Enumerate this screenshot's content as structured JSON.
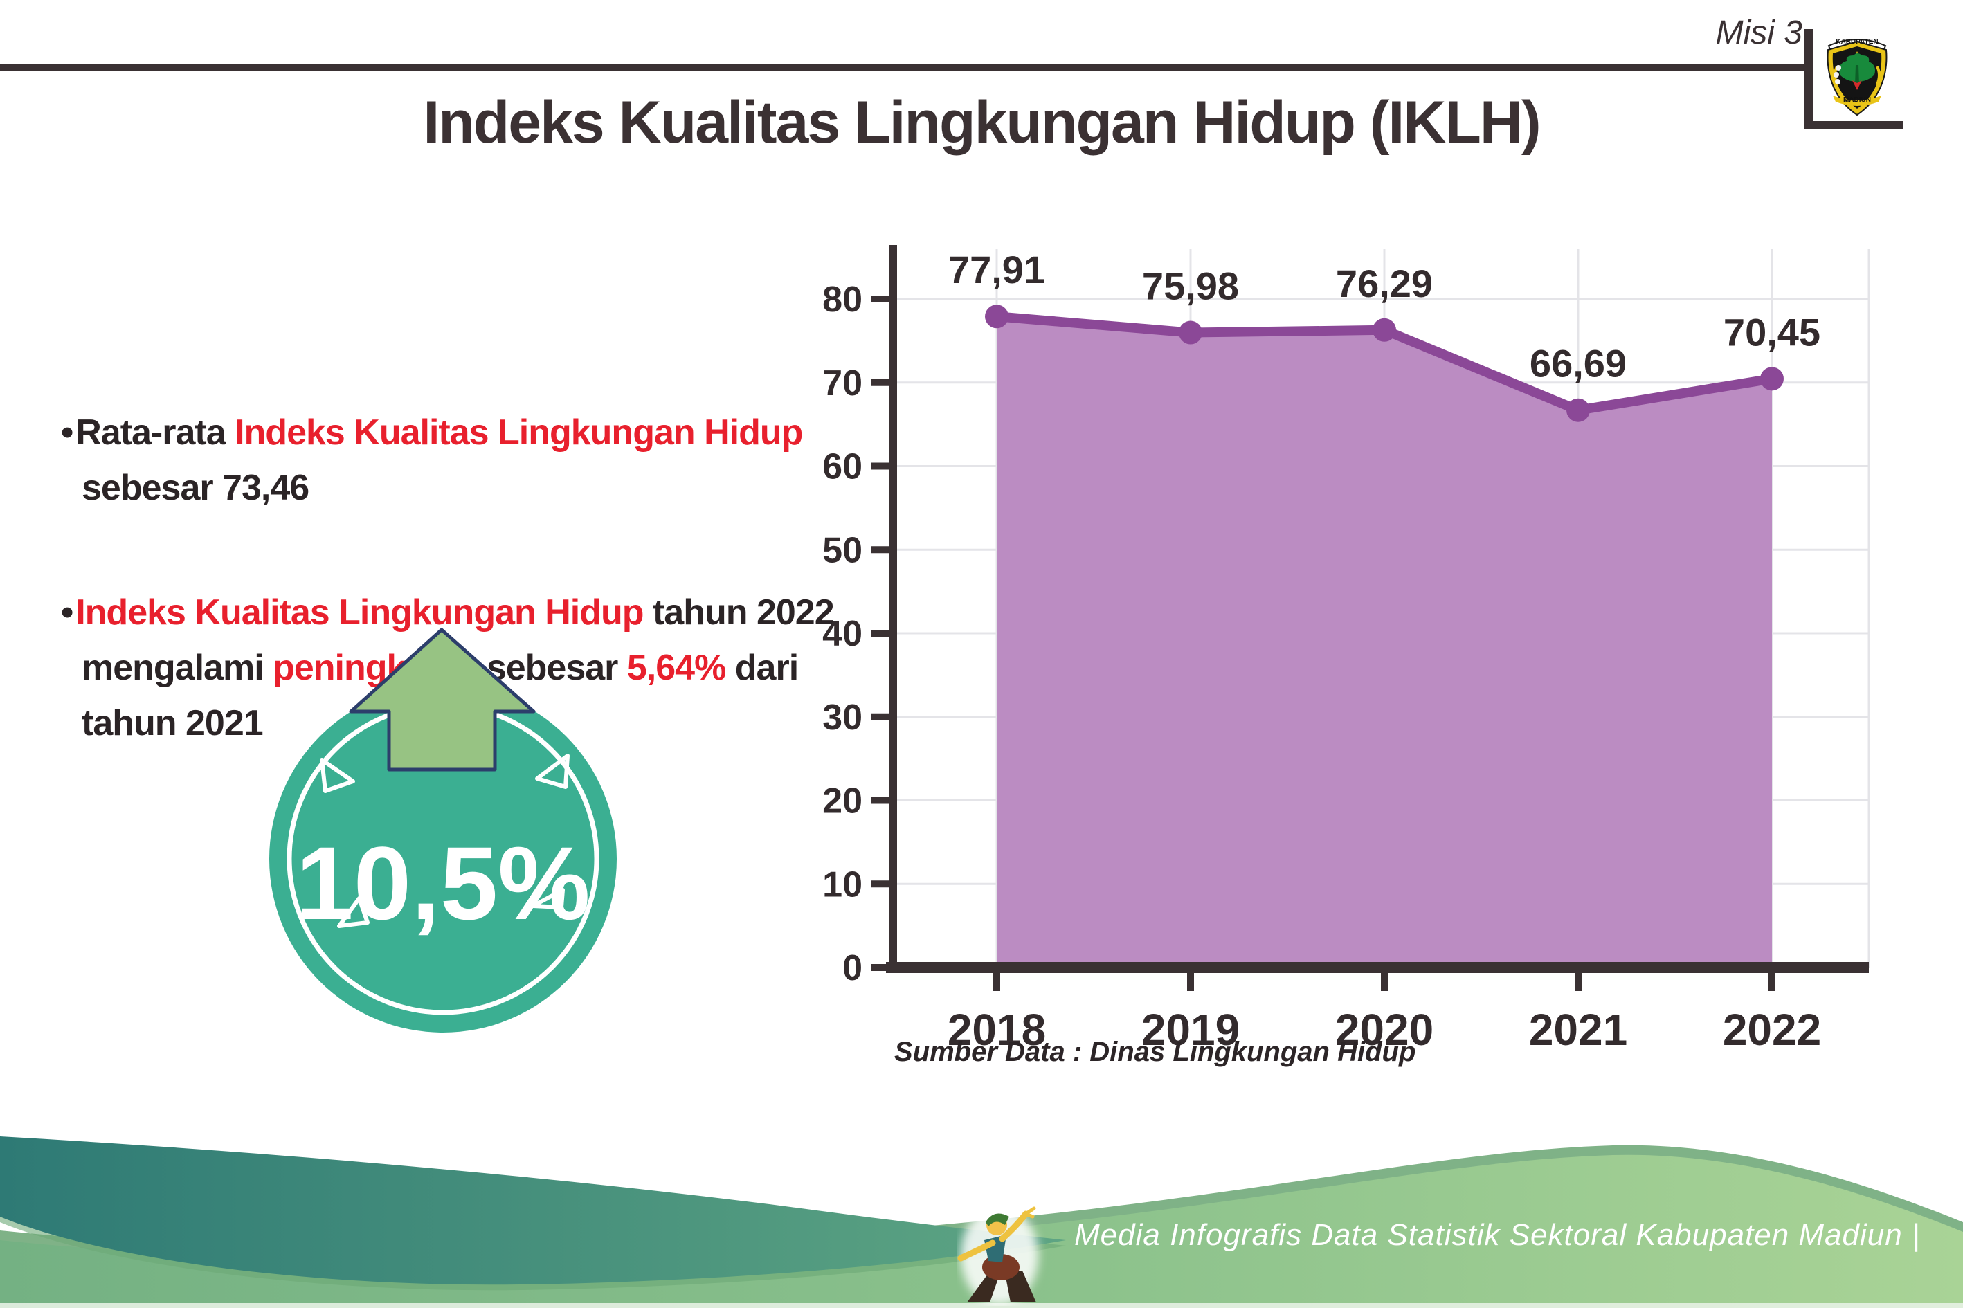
{
  "header": {
    "misi": "Misi 3",
    "logo_top": "KABUPATEN",
    "logo_bottom": "MADIUN"
  },
  "title": "Indeks Kualitas Lingkungan Hidup (IKLH)",
  "bullets": {
    "b1_1": "Rata-rata ",
    "b1_2": "Indeks Kualitas Lingkungan Hidup",
    "b1_3": "sebesar 73,46",
    "b2_1": "Indeks Kualitas Lingkungan Hidup",
    "b2_2": " tahun 2022",
    "b2_3": "mengalami ",
    "b2_4": "peningkatan",
    "b2_5": " sebesar ",
    "b2_6": "5,64%",
    "b2_7": " dari",
    "b2_8": "tahun 2021"
  },
  "badge": {
    "value": "10,5%"
  },
  "chart_data": {
    "type": "area",
    "categories": [
      "2018",
      "2019",
      "2020",
      "2021",
      "2022"
    ],
    "values": [
      77.91,
      75.98,
      76.29,
      66.69,
      70.45
    ],
    "labels": [
      "77,91",
      "75,98",
      "76,29",
      "66,69",
      "70,45"
    ],
    "title": "",
    "xlabel": "",
    "ylabel": "",
    "ylim": [
      0,
      80
    ],
    "yticks": [
      "0",
      "10",
      "20",
      "30",
      "40",
      "50",
      "60",
      "70",
      "80"
    ],
    "grid": true,
    "legend": false,
    "source": "Sumber Data : Dinas Lingkungan Hidup"
  },
  "footer": {
    "text": "Media Infografis Data Statistik Sektoral Kabupaten Madiun |"
  },
  "colors": {
    "dark": "#3a3133",
    "text_dark": "#2b2426",
    "red": "#e8202d",
    "line_purple": "#8b4897",
    "fill_purple": "#bb8cc2",
    "grid_gray": "#e4e4e8",
    "badge_teal": "#3baf92",
    "arrow_green": "#97c383",
    "arrow_outline_navy": "#2c3e6b",
    "footer_teal": "#2e7a75",
    "footer_green": "#74b183",
    "footer_green_light": "#a9d396",
    "footer_text": "#ffffff"
  }
}
